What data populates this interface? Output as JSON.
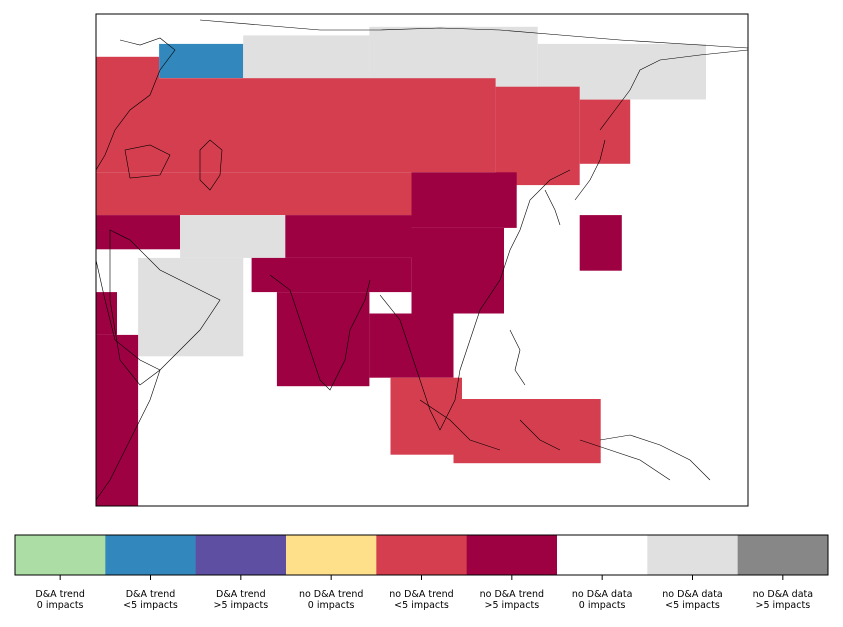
{
  "chart_data": {
    "type": "heatmap",
    "title": "",
    "xlabel": "",
    "ylabel": "",
    "colorbar": {
      "orientation": "horizontal",
      "placement": "bottom",
      "categories": [
        {
          "line1": "D&A trend",
          "line2": "0 impacts",
          "color": "#abdda4"
        },
        {
          "line1": "D&A trend",
          "line2": "<5 impacts",
          "color": "#3288bd"
        },
        {
          "line1": "D&A trend",
          "line2": ">5 impacts",
          "color": "#5e4fa2"
        },
        {
          "line1": "no D&A trend",
          "line2": "0 impacts",
          "color": "#fee08b"
        },
        {
          "line1": "no D&A trend",
          "line2": "<5 impacts",
          "color": "#d53e4f"
        },
        {
          "line1": "no D&A trend",
          "line2": ">5 impacts",
          "color": "#9e0142"
        },
        {
          "line1": "no D&A data",
          "line2": "0 impacts",
          "color": "#ffffff"
        },
        {
          "line1": "no D&A data",
          "line2": "<5 impacts",
          "color": "#e0e0e0"
        },
        {
          "line1": "no D&A data",
          "line2": ">5 impacts",
          "color": "#878787"
        }
      ]
    },
    "grid_resolution_deg": 2.5,
    "lon_range": [
      25,
      180
    ],
    "lat_range": [
      -20,
      95
    ],
    "cells": [
      {
        "lon0": 25,
        "lon1": 40,
        "lat0": 70,
        "lat1": 85,
        "category": 4
      },
      {
        "lon0": 40,
        "lon1": 60,
        "lat0": 80,
        "lat1": 88,
        "category": 1
      },
      {
        "lon0": 60,
        "lon1": 90,
        "lat0": 78,
        "lat1": 90,
        "category": 7
      },
      {
        "lon0": 90,
        "lon1": 130,
        "lat0": 78,
        "lat1": 92,
        "category": 7
      },
      {
        "lon0": 130,
        "lon1": 170,
        "lat0": 75,
        "lat1": 88,
        "category": 7
      },
      {
        "lon0": 25,
        "lon1": 120,
        "lat0": 58,
        "lat1": 80,
        "category": 4
      },
      {
        "lon0": 120,
        "lon1": 140,
        "lat0": 55,
        "lat1": 78,
        "category": 4
      },
      {
        "lon0": 140,
        "lon1": 152,
        "lat0": 60,
        "lat1": 75,
        "category": 4
      },
      {
        "lon0": 25,
        "lon1": 100,
        "lat0": 48,
        "lat1": 58,
        "category": 4
      },
      {
        "lon0": 100,
        "lon1": 125,
        "lat0": 45,
        "lat1": 58,
        "category": 5
      },
      {
        "lon0": 25,
        "lon1": 45,
        "lat0": 40,
        "lat1": 48,
        "category": 5
      },
      {
        "lon0": 45,
        "lon1": 70,
        "lat0": 38,
        "lat1": 48,
        "category": 7
      },
      {
        "lon0": 70,
        "lon1": 100,
        "lat0": 38,
        "lat1": 48,
        "category": 5
      },
      {
        "lon0": 100,
        "lon1": 122,
        "lat0": 25,
        "lat1": 45,
        "category": 5
      },
      {
        "lon0": 62,
        "lon1": 100,
        "lat0": 30,
        "lat1": 38,
        "category": 5
      },
      {
        "lon0": 68,
        "lon1": 90,
        "lat0": 8,
        "lat1": 30,
        "category": 5
      },
      {
        "lon0": 90,
        "lon1": 110,
        "lat0": 10,
        "lat1": 25,
        "category": 5
      },
      {
        "lon0": 35,
        "lon1": 60,
        "lat0": 15,
        "lat1": 38,
        "category": 7
      },
      {
        "lon0": 25,
        "lon1": 30,
        "lat0": 20,
        "lat1": 30,
        "category": 5
      },
      {
        "lon0": 25,
        "lon1": 35,
        "lat0": -20,
        "lat1": 20,
        "category": 5
      },
      {
        "lon0": 95,
        "lon1": 112,
        "lat0": -8,
        "lat1": 10,
        "category": 4
      },
      {
        "lon0": 110,
        "lon1": 145,
        "lat0": -10,
        "lat1": 5,
        "category": 4
      },
      {
        "lon0": 140,
        "lon1": 150,
        "lat0": 35,
        "lat1": 48,
        "category": 5
      }
    ]
  }
}
